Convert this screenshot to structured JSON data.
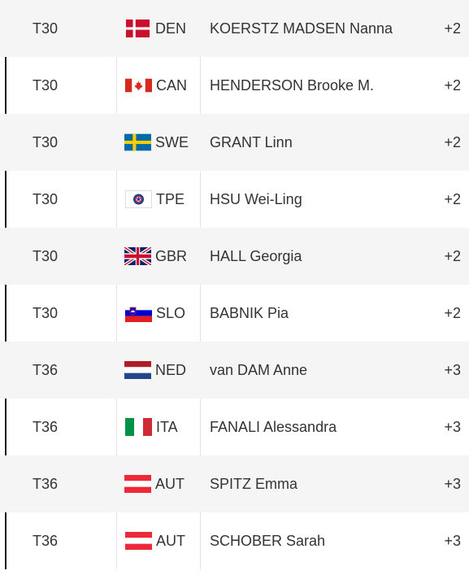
{
  "leaderboard": {
    "rows": [
      {
        "position": "T30",
        "country": "DEN",
        "flag": "denmark-flag-icon",
        "name": "KOERSTZ MADSEN Nanna",
        "score": "+2"
      },
      {
        "position": "T30",
        "country": "CAN",
        "flag": "canada-flag-icon",
        "name": "HENDERSON Brooke M.",
        "score": "+2"
      },
      {
        "position": "T30",
        "country": "SWE",
        "flag": "sweden-flag-icon",
        "name": "GRANT Linn",
        "score": "+2"
      },
      {
        "position": "T30",
        "country": "TPE",
        "flag": "chinese-taipei-flag-icon",
        "name": "HSU Wei-Ling",
        "score": "+2"
      },
      {
        "position": "T30",
        "country": "GBR",
        "flag": "great-britain-flag-icon",
        "name": "HALL Georgia",
        "score": "+2"
      },
      {
        "position": "T30",
        "country": "SLO",
        "flag": "slovenia-flag-icon",
        "name": "BABNIK Pia",
        "score": "+2"
      },
      {
        "position": "T36",
        "country": "NED",
        "flag": "netherlands-flag-icon",
        "name": "van DAM Anne",
        "score": "+3"
      },
      {
        "position": "T36",
        "country": "ITA",
        "flag": "italy-flag-icon",
        "name": "FANALI Alessandra",
        "score": "+3"
      },
      {
        "position": "T36",
        "country": "AUT",
        "flag": "austria-flag-icon",
        "name": "SPITZ Emma",
        "score": "+3"
      },
      {
        "position": "T36",
        "country": "AUT",
        "flag": "austria-flag-icon",
        "name": "SCHOBER Sarah",
        "score": "+3"
      }
    ]
  },
  "colors": {
    "shaded_row": "#f5f5f5",
    "plain_row": "#ffffff",
    "text": "#333333",
    "accent_bar": "#1a1a1a"
  }
}
